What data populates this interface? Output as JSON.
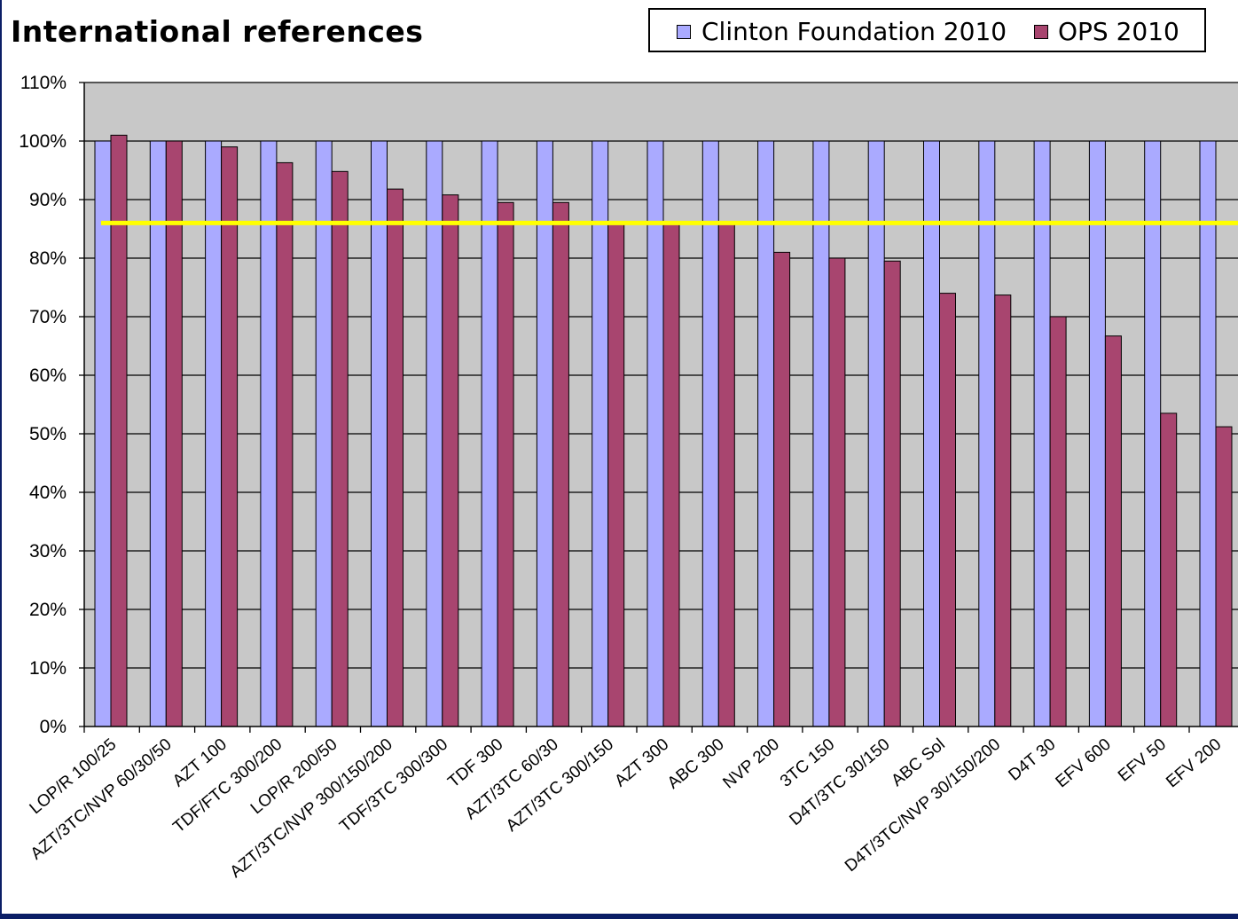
{
  "chart_data": {
    "type": "bar",
    "title": "International references",
    "xlabel": "",
    "ylabel": "",
    "ylim": [
      0,
      110
    ],
    "y_tick_step": 10,
    "y_tick_suffix": "%",
    "grid": true,
    "legend_position": "top-right",
    "reference_line": {
      "value": 86,
      "color": "#ffff00"
    },
    "colors": {
      "plot_background": "#c8c8c8",
      "series_1": "#aaaaff",
      "series_2": "#a8456f",
      "gridline": "#000000"
    },
    "categories": [
      "LOP/R 100/25",
      "AZT/3TC/NVP 60/30/50",
      "AZT 100",
      "TDF/FTC 300/200",
      "LOP/R 200/50",
      "AZT/3TC/NVP 300/150/200",
      "TDF/3TC 300/300",
      "TDF 300",
      "AZT/3TC 60/30",
      "AZT/3TC 300/150",
      "AZT 300",
      "ABC 300",
      "NVP 200",
      "3TC 150",
      "D4T/3TC 30/150",
      "ABC Sol",
      "D4T/3TC/NVP 30/150/200",
      "D4T 30",
      "EFV 600",
      "EFV 50",
      "EFV 200"
    ],
    "series": [
      {
        "name": "Clinton Foundation 2010",
        "values": [
          100,
          100,
          100,
          100,
          100,
          100,
          100,
          100,
          100,
          100,
          100,
          100,
          100,
          100,
          100,
          100,
          100,
          100,
          100,
          100,
          100
        ]
      },
      {
        "name": "OPS 2010",
        "values": [
          101,
          100,
          99,
          96.3,
          94.8,
          91.8,
          90.8,
          89.5,
          89.5,
          86,
          86,
          86,
          81,
          80,
          79.5,
          74,
          73.7,
          70,
          66.7,
          53.5,
          51.2
        ]
      }
    ]
  }
}
